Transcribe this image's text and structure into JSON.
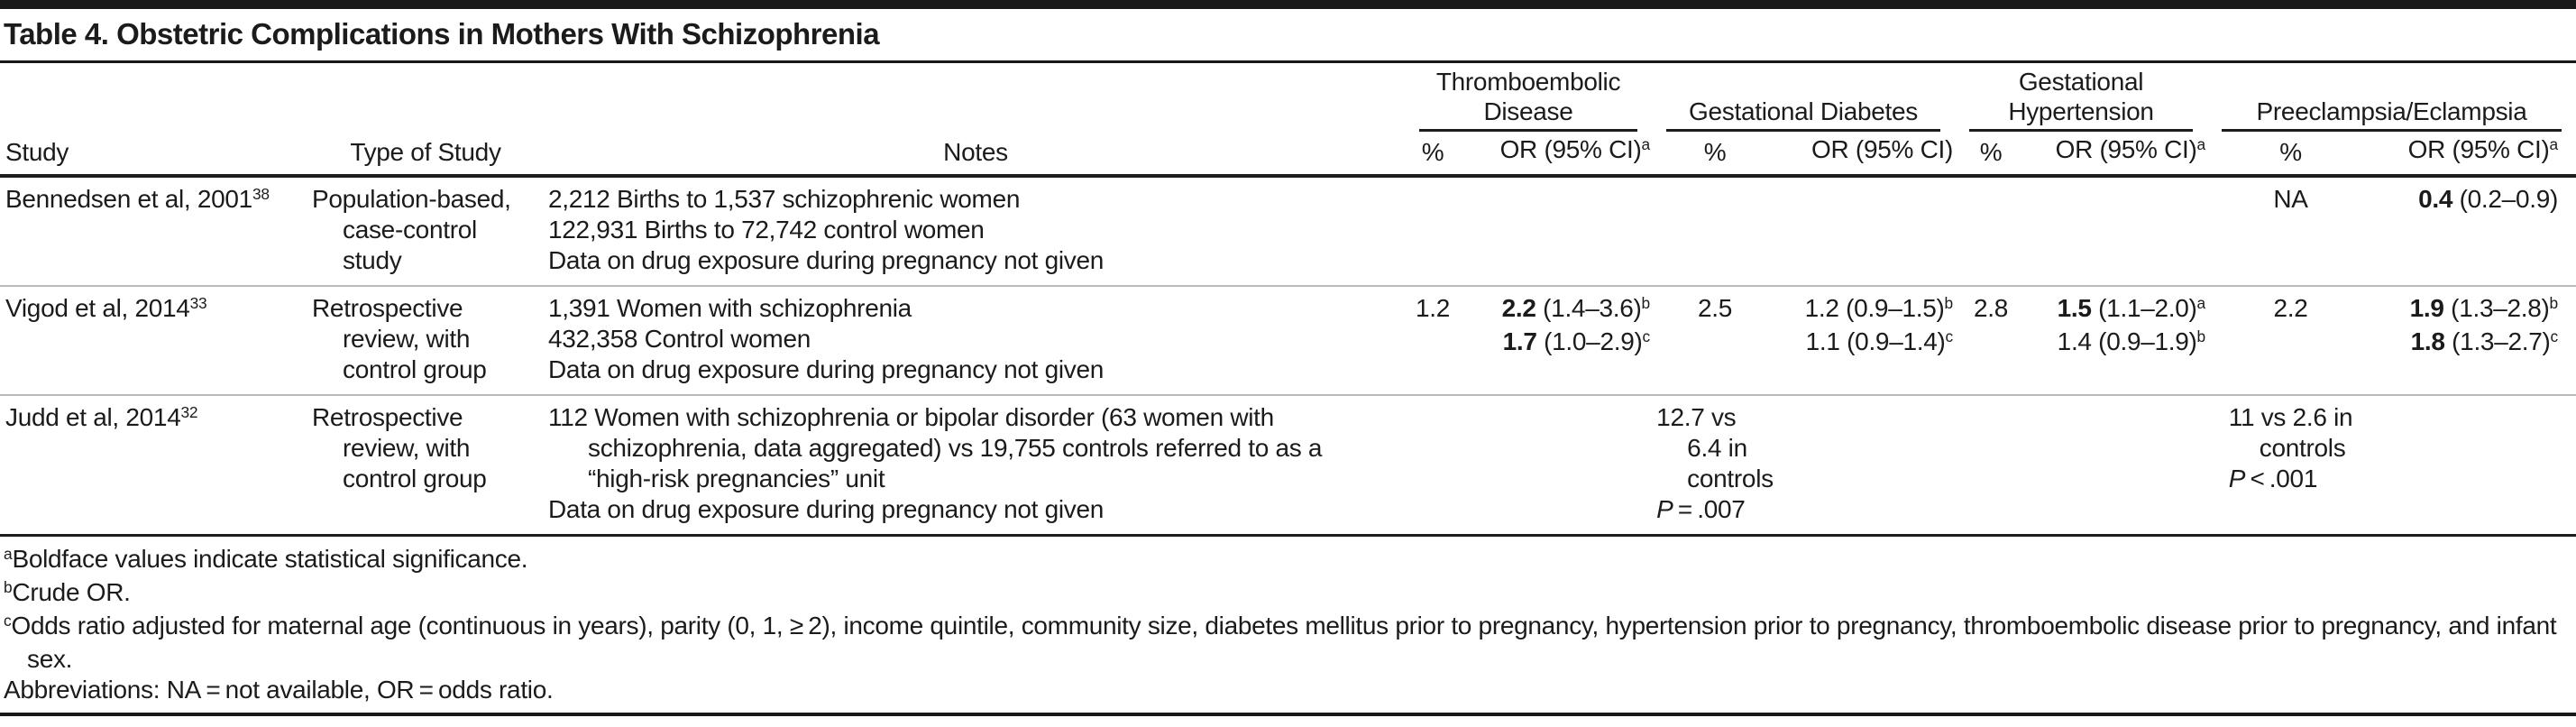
{
  "title": "Table 4. Obstetric Complications in Mothers With Schizophrenia",
  "header": {
    "study": "Study",
    "type_of_study": "Type of Study",
    "notes": "Notes",
    "groups": [
      {
        "label": "Thromboembolic Disease",
        "pct_label": "%",
        "or_label": "OR (95% CI)",
        "or_sup": "a"
      },
      {
        "label": "Gestational Diabetes",
        "pct_label": "%",
        "or_label": "OR (95% CI)",
        "or_sup": ""
      },
      {
        "label": "Gestational Hypertension",
        "pct_label": "%",
        "or_label": "OR (95% CI)",
        "or_sup": "a"
      },
      {
        "label": "Preeclampsia/Eclampsia",
        "pct_label": "%",
        "or_label": "OR (95% CI)",
        "or_sup": "a"
      }
    ]
  },
  "rows": [
    {
      "study": {
        "text": "Bennedsen et al, 2001",
        "ref": "38"
      },
      "type_lines": [
        {
          "t": "Population-based,",
          "indent": false
        },
        {
          "t": "case-control",
          "indent": true
        },
        {
          "t": "study",
          "indent": true
        }
      ],
      "notes": [
        {
          "lines": [
            {
              "t": "2,212 Births to 1,537 schizophrenic women",
              "indent": false
            }
          ]
        },
        {
          "lines": [
            {
              "t": "122,931 Births to 72,742 control women",
              "indent": false
            }
          ]
        },
        {
          "lines": [
            {
              "t": "Data on drug exposure during pregnancy not given",
              "indent": false
            }
          ]
        }
      ],
      "thromboembolic_disease": {
        "pct": "",
        "or_lines": []
      },
      "gestational_diabetes": {
        "pct": "",
        "or_lines": []
      },
      "gestational_hypertension": {
        "pct": "",
        "or_lines": []
      },
      "preeclampsia_eclampsia": {
        "pct": "NA",
        "or_lines": [
          {
            "bold": "0.4",
            "rest": " (0.2–0.9)",
            "sup": ""
          }
        ]
      }
    },
    {
      "study": {
        "text": "Vigod et al, 2014",
        "ref": "33"
      },
      "type_lines": [
        {
          "t": "Retrospective",
          "indent": false
        },
        {
          "t": "review, with",
          "indent": true
        },
        {
          "t": "control group",
          "indent": true
        }
      ],
      "notes": [
        {
          "lines": [
            {
              "t": "1,391 Women with schizophrenia",
              "indent": false
            }
          ]
        },
        {
          "lines": [
            {
              "t": "432,358 Control women",
              "indent": false
            }
          ]
        },
        {
          "lines": [
            {
              "t": "Data on drug exposure during pregnancy not given",
              "indent": false
            }
          ]
        }
      ],
      "thromboembolic_disease": {
        "pct": "1.2",
        "or_lines": [
          {
            "bold": "2.2",
            "rest": " (1.4–3.6)",
            "sup": "b"
          },
          {
            "bold": "1.7",
            "rest": " (1.0–2.9)",
            "sup": "c"
          }
        ]
      },
      "gestational_diabetes": {
        "pct": "2.5",
        "or_lines": [
          {
            "bold": "",
            "rest": "1.2 (0.9–1.5)",
            "sup": "b"
          },
          {
            "bold": "",
            "rest": "1.1 (0.9–1.4)",
            "sup": "c"
          }
        ]
      },
      "gestational_hypertension": {
        "pct": "2.8",
        "or_lines": [
          {
            "bold": "1.5",
            "rest": " (1.1–2.0)",
            "sup": "a"
          },
          {
            "bold": "",
            "rest": "1.4 (0.9–1.9)",
            "sup": "b"
          }
        ]
      },
      "preeclampsia_eclampsia": {
        "pct": "2.2",
        "or_lines": [
          {
            "bold": "1.9",
            "rest": " (1.3–2.8)",
            "sup": "b"
          },
          {
            "bold": "1.8",
            "rest": " (1.3–2.7)",
            "sup": "c"
          }
        ]
      }
    },
    {
      "study": {
        "text": "Judd et al, 2014",
        "ref": "32"
      },
      "type_lines": [
        {
          "t": "Retrospective",
          "indent": false
        },
        {
          "t": "review, with",
          "indent": true
        },
        {
          "t": "control group",
          "indent": true
        }
      ],
      "notes": [
        {
          "lines": [
            {
              "t": "112 Women with schizophrenia or bipolar disorder (63 women with",
              "indent": false
            },
            {
              "t": "schizophrenia, data aggregated) vs 19,755 controls referred to as a",
              "indent": true
            },
            {
              "t": "“high-risk pregnancies” unit",
              "indent": true
            }
          ]
        },
        {
          "lines": [
            {
              "t": "Data on drug exposure during pregnancy not given",
              "indent": false
            }
          ]
        }
      ],
      "thromboembolic_disease": {
        "pct": "",
        "or_lines": []
      },
      "gestational_diabetes": {
        "pct_lines": [
          {
            "t": "12.7 vs",
            "indent": false
          },
          {
            "t": "6.4 in",
            "indent": true
          },
          {
            "t": "controls",
            "indent": true
          },
          {
            "it": "P",
            "t": " = .007",
            "indent": false
          }
        ],
        "or_lines": []
      },
      "gestational_hypertension": {
        "pct": "",
        "or_lines": []
      },
      "preeclampsia_eclampsia": {
        "pct_lines": [
          {
            "t": "11 vs 2.6 in",
            "indent": false
          },
          {
            "t": "controls",
            "indent": true
          },
          {
            "it": "P",
            "t": " < .001",
            "indent": false
          }
        ],
        "or_lines": []
      }
    }
  ],
  "footnotes": [
    {
      "marker": "a",
      "text": "Boldface values indicate statistical significance."
    },
    {
      "marker": "b",
      "text": "Crude OR."
    },
    {
      "marker": "c",
      "text": "Odds ratio adjusted for maternal age (continuous in years), parity (0, 1, ≥ 2), income quintile, community size, diabetes mellitus prior to pregnancy, hypertension prior to pregnancy, thromboembolic disease prior to pregnancy, and infant sex."
    },
    {
      "marker": "",
      "text": "Abbreviations: NA = not available, OR = odds ratio."
    }
  ]
}
